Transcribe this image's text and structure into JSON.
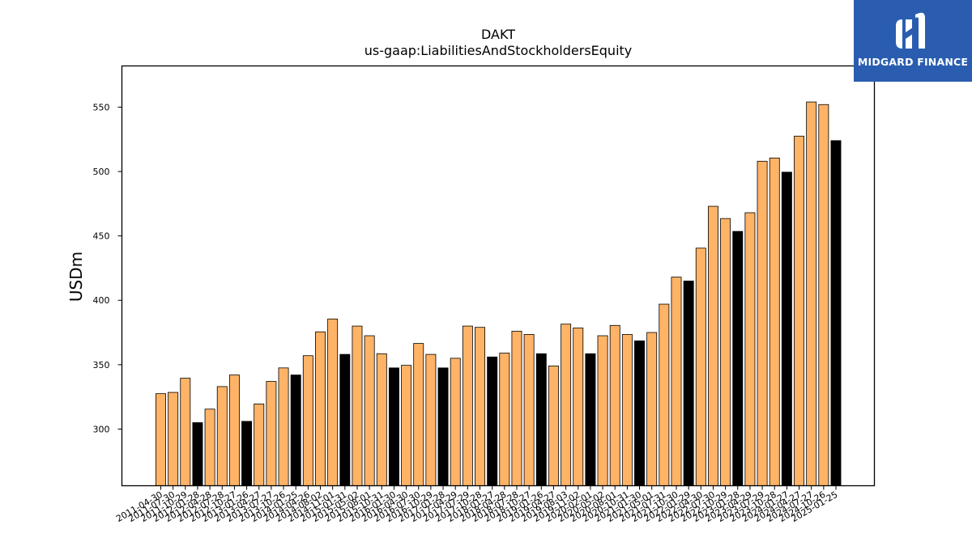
{
  "brand": {
    "name": "MIDGARD FINANCE",
    "logo_icon": "midgard-m-icon",
    "color": "#2a5db0"
  },
  "chart_data": {
    "type": "bar",
    "title": "DAKT",
    "subtitle": "us-gaap:LiabilitiesAndStockholdersEquity",
    "ylabel": "USDm",
    "xlabel": "",
    "ylim": [
      256,
      582
    ],
    "yticks": [
      300,
      350,
      400,
      450,
      500,
      550
    ],
    "grid": false,
    "colors": {
      "quarter": "#ffb366",
      "fiscal_year": "#000000"
    },
    "categories": [
      "2011-04-30",
      "2011-07-30",
      "2011-10-29",
      "2012-01-28",
      "2012-04-28",
      "2012-07-28",
      "2012-10-27",
      "2013-01-26",
      "2013-04-27",
      "2013-07-27",
      "2013-10-26",
      "2014-01-25",
      "2014-04-26",
      "2014-08-02",
      "2014-11-01",
      "2015-01-31",
      "2015-05-02",
      "2015-08-01",
      "2015-10-31",
      "2016-01-30",
      "2016-04-30",
      "2016-07-30",
      "2016-10-29",
      "2017-01-28",
      "2017-04-29",
      "2017-07-29",
      "2017-10-28",
      "2018-01-27",
      "2018-04-28",
      "2018-07-28",
      "2018-10-27",
      "2019-01-26",
      "2019-04-27",
      "2019-08-03",
      "2019-11-02",
      "2020-02-01",
      "2020-05-02",
      "2020-08-01",
      "2020-10-31",
      "2021-01-30",
      "2021-05-01",
      "2021-07-31",
      "2021-10-30",
      "2022-01-29",
      "2022-04-30",
      "2022-07-30",
      "2022-10-29",
      "2023-01-28",
      "2023-04-29",
      "2023-07-29",
      "2023-10-28",
      "2024-01-27",
      "2024-04-27",
      "2024-07-27",
      "2024-10-26",
      "2025-01-25"
    ],
    "values": [
      327.5,
      328.5,
      339.5,
      305,
      315.5,
      333,
      342,
      306,
      319.5,
      337,
      347.5,
      342,
      357,
      375.5,
      385.5,
      358,
      380,
      372.5,
      358.5,
      347.5,
      349.5,
      366.5,
      358,
      347.5,
      355,
      380,
      379,
      356,
      359,
      376,
      373.5,
      358.5,
      349,
      381.5,
      378.5,
      358.5,
      372.5,
      380.5,
      373.5,
      368.5,
      375,
      397,
      418,
      415,
      440.5,
      473,
      463.5,
      453.5,
      468,
      508,
      510.5,
      499.5,
      527.5,
      554,
      552,
      524
    ],
    "fiscal_year_end": [
      false,
      false,
      false,
      true,
      false,
      false,
      false,
      true,
      false,
      false,
      false,
      true,
      false,
      false,
      false,
      true,
      false,
      false,
      false,
      true,
      false,
      false,
      false,
      true,
      false,
      false,
      false,
      true,
      false,
      false,
      false,
      true,
      false,
      false,
      false,
      true,
      false,
      false,
      false,
      true,
      false,
      false,
      false,
      true,
      false,
      false,
      false,
      true,
      false,
      false,
      false,
      true,
      false,
      false,
      false,
      true
    ]
  }
}
